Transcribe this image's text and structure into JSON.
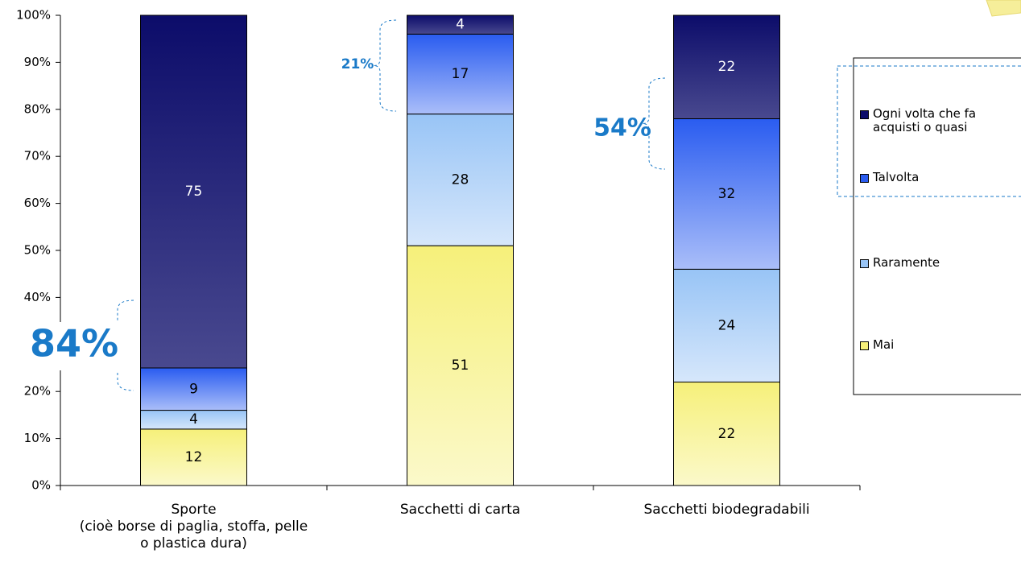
{
  "chart_data": {
    "type": "bar",
    "stacked": true,
    "categories": [
      "Sporte\n(cioè borse di paglia, stoffa, pelle\no plastica dura)",
      "Sacchetti di carta",
      "Sacchetti biodegradabili"
    ],
    "series": [
      {
        "name": "Mai",
        "color": "#f6f07a",
        "values": [
          12,
          51,
          22
        ]
      },
      {
        "name": "Raramente",
        "color": "#98c4f6",
        "values": [
          4,
          28,
          24
        ]
      },
      {
        "name": "Talvolta",
        "color": "#2a5cf0",
        "values": [
          9,
          17,
          32
        ]
      },
      {
        "name": "Ogni volta che fa acquisti o quasi",
        "color": "#0c0c6a",
        "values": [
          75,
          4,
          22
        ]
      }
    ],
    "ylim": [
      0,
      100
    ],
    "yticks": [
      {
        "value": 0,
        "label": "0%"
      },
      {
        "value": 10,
        "label": "10%"
      },
      {
        "value": 20,
        "label": "20%"
      },
      {
        "value": 30,
        "label": "30%"
      },
      {
        "value": 40,
        "label": "40%"
      },
      {
        "value": 50,
        "label": "50%"
      },
      {
        "value": 60,
        "label": "60%"
      },
      {
        "value": 70,
        "label": "70%"
      },
      {
        "value": 80,
        "label": "80%"
      },
      {
        "value": 90,
        "label": "90%"
      },
      {
        "value": 100,
        "label": "100%"
      }
    ],
    "annotations": [
      {
        "text": "84%"
      },
      {
        "text": "21%"
      },
      {
        "text": "54%"
      }
    ]
  }
}
